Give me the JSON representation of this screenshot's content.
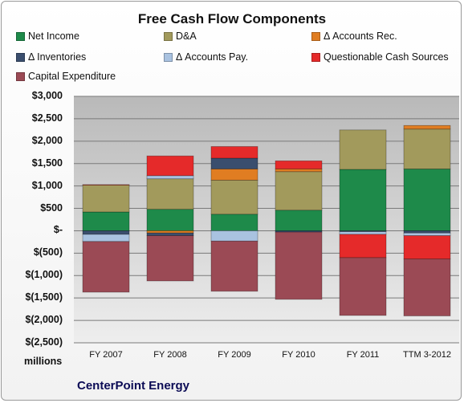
{
  "chart_data": {
    "type": "bar",
    "stacked": true,
    "title": "Free Cash Flow Components",
    "units_label": "millions",
    "company": "CenterPoint Energy",
    "categories": [
      "FY 2007",
      "FY 2008",
      "FY 2009",
      "FY 2010",
      "FY 2011",
      "TTM 3-2012"
    ],
    "ylim": [
      -2500,
      3000
    ],
    "yticks": [
      3000,
      2500,
      2000,
      1500,
      1000,
      500,
      0,
      -500,
      -1000,
      -1500,
      -2000,
      -2500
    ],
    "ytick_labels": [
      "$3,000",
      "$2,500",
      "$2,000",
      "$1,500",
      "$1,000",
      "$500",
      "$-",
      "$(500)",
      "$(1,000)",
      "$(1,500)",
      "$(2,000)",
      "$(2,500)"
    ],
    "grid": true,
    "legend_position": "top",
    "series": [
      {
        "name": "Net Income",
        "color": "#1e8a4a",
        "values": [
          420,
          480,
          370,
          460,
          1370,
          1380
        ]
      },
      {
        "name": "D&A",
        "color": "#a29a5c",
        "values": [
          600,
          680,
          760,
          860,
          880,
          890
        ]
      },
      {
        "name": "Δ Accounts Rec.",
        "color": "#e07d22",
        "values": [
          0,
          -50,
          250,
          60,
          0,
          80
        ]
      },
      {
        "name": "Δ Inventories",
        "color": "#3a4e6e",
        "values": [
          -80,
          -60,
          240,
          -30,
          -20,
          -50
        ]
      },
      {
        "name": "Δ Accounts Pay.",
        "color": "#a9c2e0",
        "values": [
          -160,
          70,
          -230,
          0,
          -60,
          -60
        ]
      },
      {
        "name": "Questionable Cash Sources",
        "color": "#e52a2a",
        "values": [
          10,
          440,
          260,
          180,
          -520,
          -520
        ]
      },
      {
        "name": "Capital Expenditure",
        "color": "#9b4a55",
        "values": [
          -1130,
          -1010,
          -1120,
          -1500,
          -1290,
          -1270
        ]
      }
    ]
  }
}
